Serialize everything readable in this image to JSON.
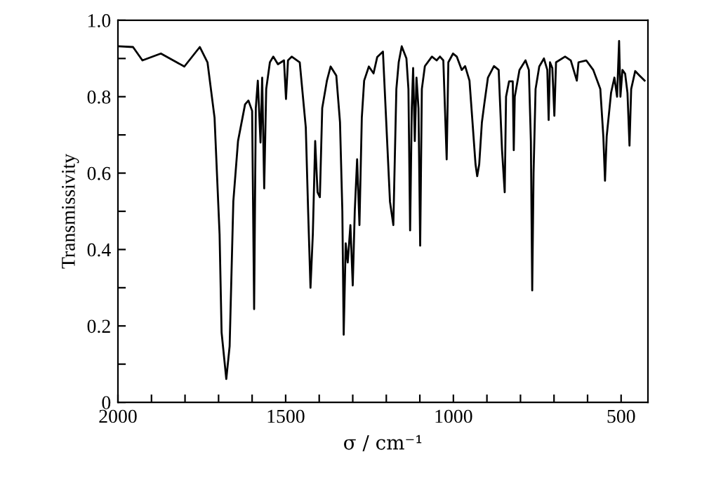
{
  "chart_data": {
    "type": "line",
    "xlabel": "σ / cm⁻¹",
    "ylabel": "Transmissivity",
    "x": [
      2000,
      1955,
      1927,
      1872,
      1802,
      1756,
      1733,
      1712,
      1697,
      1691,
      1677,
      1667,
      1656,
      1642,
      1621,
      1611,
      1600,
      1594,
      1589,
      1583,
      1575,
      1570,
      1564,
      1558,
      1547,
      1537,
      1523,
      1505,
      1499,
      1493,
      1482,
      1458,
      1440,
      1433,
      1426,
      1419,
      1412,
      1405,
      1398,
      1391,
      1377,
      1366,
      1349,
      1338,
      1331,
      1327,
      1321,
      1315,
      1307,
      1300,
      1294,
      1287,
      1280,
      1273,
      1266,
      1252,
      1238,
      1227,
      1210,
      1189,
      1179,
      1170,
      1163,
      1154,
      1140,
      1134,
      1129,
      1124,
      1120,
      1115,
      1110,
      1104,
      1099,
      1094,
      1085,
      1064,
      1050,
      1040,
      1030,
      1020,
      1015,
      1001,
      990,
      975,
      965,
      952,
      943,
      934,
      929,
      923,
      915,
      908,
      897,
      879,
      865,
      855,
      847,
      843,
      834,
      823,
      820,
      817,
      803,
      785,
      775,
      769,
      765,
      761,
      755,
      744,
      730,
      720,
      716,
      712,
      705,
      699,
      694,
      667,
      650,
      632,
      627,
      604,
      583,
      562,
      553,
      548,
      543,
      530,
      520,
      512,
      506,
      502,
      496,
      488,
      481,
      475,
      470,
      458,
      445,
      430
    ],
    "series": [
      {
        "color": "#000000",
        "values": [
          0.932,
          0.93,
          0.895,
          0.913,
          0.879,
          0.93,
          0.89,
          0.745,
          0.44,
          0.183,
          0.061,
          0.147,
          0.526,
          0.684,
          0.78,
          0.79,
          0.763,
          0.244,
          0.77,
          0.842,
          0.68,
          0.85,
          0.56,
          0.82,
          0.89,
          0.905,
          0.885,
          0.895,
          0.794,
          0.895,
          0.905,
          0.89,
          0.72,
          0.5,
          0.3,
          0.44,
          0.684,
          0.55,
          0.537,
          0.77,
          0.842,
          0.879,
          0.855,
          0.733,
          0.5,
          0.177,
          0.416,
          0.366,
          0.464,
          0.306,
          0.5,
          0.636,
          0.464,
          0.745,
          0.842,
          0.879,
          0.861,
          0.904,
          0.918,
          0.525,
          0.464,
          0.82,
          0.89,
          0.932,
          0.9,
          0.82,
          0.45,
          0.77,
          0.875,
          0.684,
          0.85,
          0.77,
          0.41,
          0.82,
          0.88,
          0.905,
          0.895,
          0.905,
          0.895,
          0.636,
          0.89,
          0.913,
          0.905,
          0.87,
          0.88,
          0.842,
          0.733,
          0.623,
          0.592,
          0.623,
          0.733,
          0.78,
          0.85,
          0.88,
          0.87,
          0.66,
          0.55,
          0.8,
          0.84,
          0.84,
          0.66,
          0.8,
          0.87,
          0.895,
          0.87,
          0.684,
          0.293,
          0.6,
          0.82,
          0.879,
          0.9,
          0.87,
          0.739,
          0.89,
          0.875,
          0.75,
          0.89,
          0.905,
          0.895,
          0.842,
          0.89,
          0.895,
          0.87,
          0.82,
          0.696,
          0.58,
          0.696,
          0.81,
          0.85,
          0.8,
          0.946,
          0.8,
          0.87,
          0.86,
          0.81,
          0.672,
          0.82,
          0.867,
          0.855,
          0.842
        ]
      }
    ],
    "xlim": [
      2000,
      420
    ],
    "ylim": [
      0,
      1.0
    ],
    "xticks": [
      2000,
      {
        "value": 1900,
        "label": null
      },
      {
        "value": 1800,
        "label": null
      },
      {
        "value": 1700,
        "label": null
      },
      {
        "value": 1600,
        "label": null
      },
      1500,
      {
        "value": 1400,
        "label": null
      },
      {
        "value": 1300,
        "label": null
      },
      {
        "value": 1200,
        "label": null
      },
      {
        "value": 1100,
        "label": null
      },
      1000,
      {
        "value": 900,
        "label": null
      },
      {
        "value": 800,
        "label": null
      },
      {
        "value": 700,
        "label": null
      },
      {
        "value": 600,
        "label": null
      },
      500
    ],
    "yticks": [
      0,
      {
        "value": 0.1,
        "label": null
      },
      0.2,
      {
        "value": 0.3,
        "label": null
      },
      0.4,
      {
        "value": 0.5,
        "label": null
      },
      0.6,
      {
        "value": 0.7,
        "label": null
      },
      0.8,
      {
        "value": 0.9,
        "label": null
      },
      {
        "value": 1.0,
        "label": "1.0"
      }
    ],
    "grid": false,
    "marker": "none",
    "line_style": "solid"
  }
}
